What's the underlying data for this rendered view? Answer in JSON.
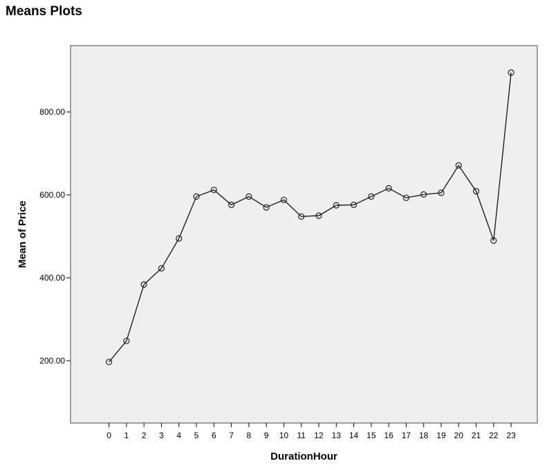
{
  "page": {
    "heading": "Means Plots"
  },
  "chart_data": {
    "type": "line",
    "xlabel": "DurationHour",
    "ylabel": "Mean of Price",
    "x": [
      0,
      1,
      2,
      3,
      4,
      5,
      6,
      7,
      8,
      9,
      10,
      11,
      12,
      13,
      14,
      15,
      16,
      17,
      18,
      19,
      20,
      21,
      22,
      23
    ],
    "x_tick_labels": [
      "0",
      "1",
      "2",
      "3",
      "4",
      "5",
      "6",
      "7",
      "8",
      "9",
      "10",
      "11",
      "12",
      "13",
      "14",
      "15",
      "16",
      "17",
      "18",
      "19",
      "20",
      "21",
      "22",
      "23"
    ],
    "y_ticks": [
      200,
      400,
      600,
      800
    ],
    "y_tick_labels": [
      "200.00",
      "400.00",
      "600.00",
      "800.00"
    ],
    "ylim": [
      50,
      960
    ],
    "xlim": [
      -2.2,
      24.5
    ],
    "grid": false,
    "series": [
      {
        "values": [
          197,
          248,
          384,
          423,
          495,
          596,
          612,
          576,
          596,
          570,
          588,
          548,
          550,
          575,
          576,
          596,
          616,
          593,
          601,
          605,
          671,
          609,
          490,
          895
        ]
      }
    ],
    "colors": {
      "plot_background": "#efefef",
      "line": "#1f1f1f",
      "marker": "#1f1f1f"
    }
  }
}
